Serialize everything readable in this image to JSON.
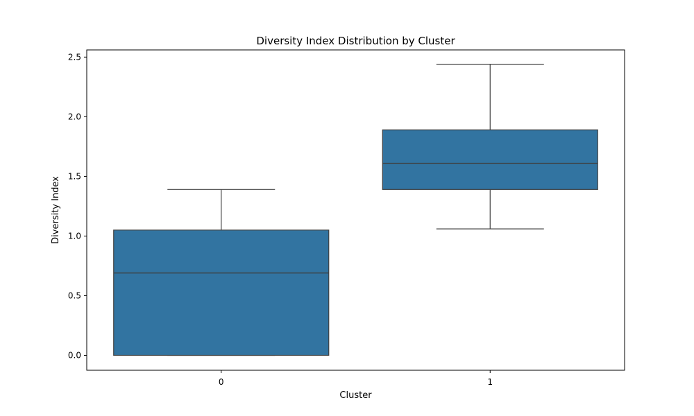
{
  "chart_data": {
    "type": "box",
    "title": "Diversity Index Distribution by Cluster",
    "xlabel": "Cluster",
    "ylabel": "Diversity Index",
    "ylim": [
      -0.125,
      2.56
    ],
    "y_ticks": [
      0.0,
      0.5,
      1.0,
      1.5,
      2.0,
      2.5
    ],
    "y_tick_labels": [
      "0.0",
      "0.5",
      "1.0",
      "1.5",
      "2.0",
      "2.5"
    ],
    "categories": [
      "0",
      "1"
    ],
    "boxes": [
      {
        "category": "0",
        "whisker_low": 0.0,
        "q1": 0.0,
        "median": 0.69,
        "q3": 1.05,
        "whisker_high": 1.39
      },
      {
        "category": "1",
        "whisker_low": 1.06,
        "q1": 1.39,
        "median": 1.61,
        "q3": 1.89,
        "whisker_high": 2.44
      }
    ],
    "box_color": "#3274a1",
    "line_color": "#3f3f3f",
    "grid": false
  }
}
